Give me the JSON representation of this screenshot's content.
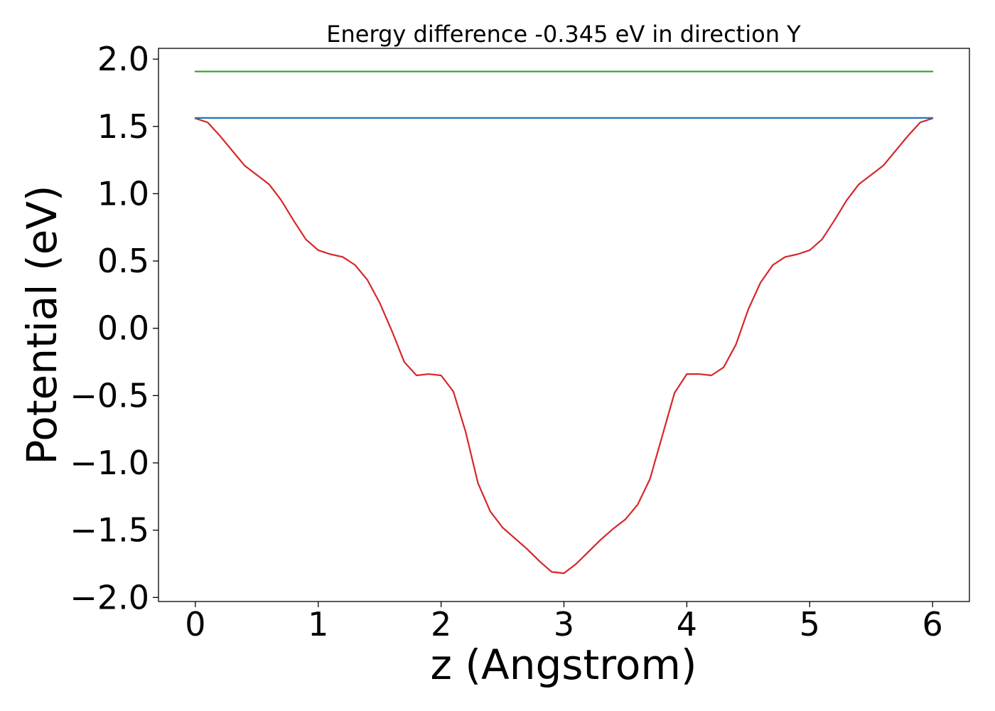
{
  "chart_data": {
    "type": "line",
    "title": "Energy difference -0.345 eV in direction Y",
    "xlabel": "z (Angstrom)",
    "ylabel": "Potential (eV)",
    "xlim": [
      -0.3,
      6.3
    ],
    "ylim": [
      -2.03,
      2.08
    ],
    "x_ticks": [
      0,
      1,
      2,
      3,
      4,
      5,
      6
    ],
    "x_tick_labels": [
      "0",
      "1",
      "2",
      "3",
      "4",
      "5",
      "6"
    ],
    "y_ticks": [
      2.0,
      1.5,
      1.0,
      0.5,
      0.0,
      -0.5,
      -1.0,
      -1.5,
      -2.0
    ],
    "y_tick_labels": [
      "2.0",
      "1.5",
      "1.0",
      "0.5",
      "0.0",
      "−0.5",
      "−1.0",
      "−1.5",
      "−2.0"
    ],
    "grid": false,
    "series": [
      {
        "color": "#d62728",
        "x": [
          0,
          0.1,
          0.2,
          0.3,
          0.4,
          0.5,
          0.6,
          0.7,
          0.8,
          0.9,
          1.0,
          1.1,
          1.2,
          1.3,
          1.4,
          1.5,
          1.6,
          1.7,
          1.8,
          1.9,
          2.0,
          2.1,
          2.2,
          2.3,
          2.4,
          2.5,
          2.6,
          2.7,
          2.8,
          2.9,
          3.0,
          3.1,
          3.2,
          3.3,
          3.4,
          3.5,
          3.6,
          3.7,
          3.8,
          3.9,
          4.0,
          4.1,
          4.2,
          4.3,
          4.4,
          4.5,
          4.6,
          4.7,
          4.8,
          4.9,
          5.0,
          5.1,
          5.2,
          5.3,
          5.4,
          5.5,
          5.6,
          5.7,
          5.8,
          5.9,
          6.0
        ],
        "y": [
          1.56,
          1.53,
          1.43,
          1.32,
          1.21,
          1.14,
          1.07,
          0.95,
          0.8,
          0.66,
          0.58,
          0.55,
          0.53,
          0.47,
          0.36,
          0.19,
          -0.02,
          -0.25,
          -0.35,
          -0.34,
          -0.35,
          -0.47,
          -0.77,
          -1.15,
          -1.36,
          -1.48,
          -1.56,
          -1.64,
          -1.73,
          -1.81,
          -1.82,
          -1.75,
          -1.66,
          -1.57,
          -1.49,
          -1.42,
          -1.31,
          -1.12,
          -0.8,
          -0.48,
          -0.34,
          -0.34,
          -0.35,
          -0.29,
          -0.12,
          0.14,
          0.34,
          0.47,
          0.53,
          0.55,
          0.58,
          0.66,
          0.8,
          0.95,
          1.07,
          1.14,
          1.21,
          1.32,
          1.43,
          1.53,
          1.56
        ]
      },
      {
        "color": "#1f77b4",
        "x": [
          0,
          6
        ],
        "y": [
          1.563,
          1.563
        ]
      },
      {
        "color": "#2ca02c",
        "x": [
          0,
          6
        ],
        "y": [
          1.908,
          1.908
        ]
      }
    ]
  }
}
